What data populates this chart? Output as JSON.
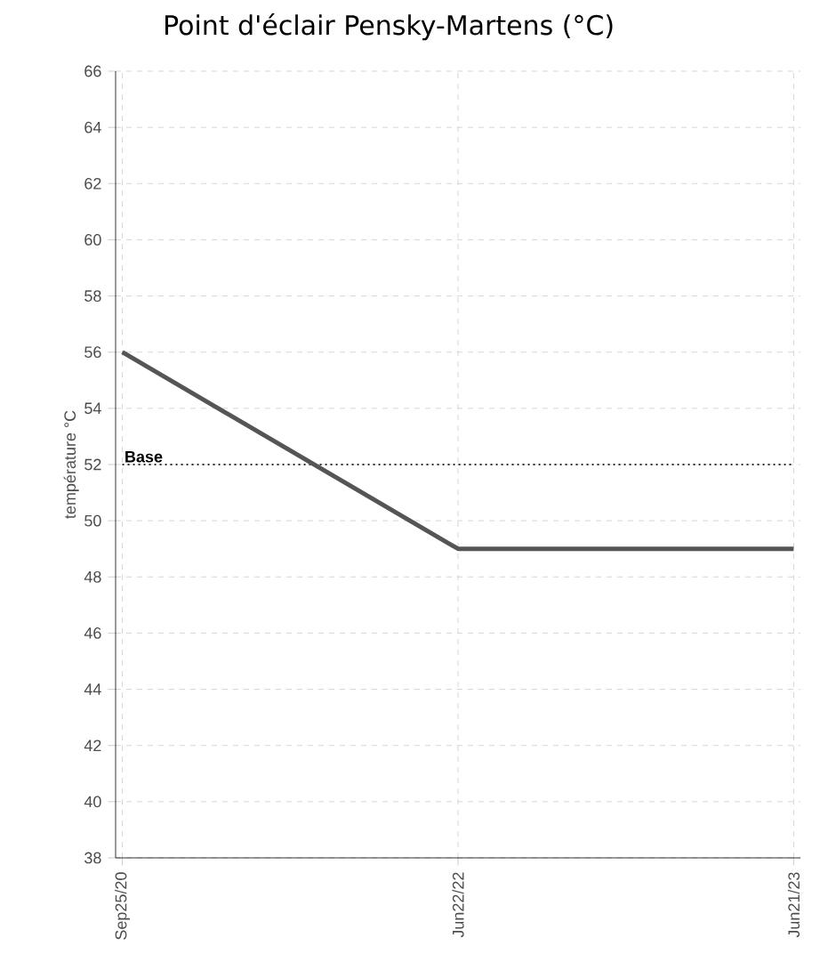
{
  "chart_data": {
    "type": "line",
    "title": "Point d'éclair Pensky-Martens (°C)",
    "ylabel": "température °C",
    "categories": [
      "Sep25/20",
      "Jun22/22",
      "Jun21/23"
    ],
    "series": [
      {
        "color": "#555555",
        "values": [
          56,
          49,
          49
        ]
      }
    ],
    "ylim": [
      38,
      66
    ],
    "yticks": [
      38,
      40,
      42,
      44,
      46,
      48,
      50,
      52,
      54,
      56,
      58,
      60,
      62,
      64,
      66
    ],
    "ref_lines": [
      {
        "axis": "y",
        "value": 52,
        "label": "Base",
        "color": "#333333",
        "line_style": "dotted"
      }
    ],
    "grid": true,
    "marker": "none",
    "line_style": "solid"
  }
}
